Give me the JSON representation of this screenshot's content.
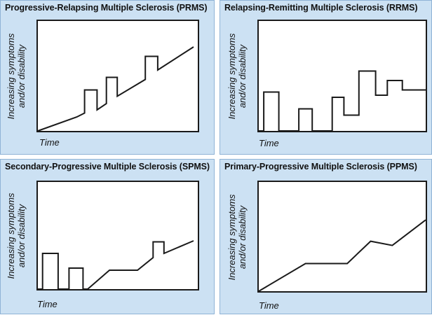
{
  "axis": {
    "ylabel_line1": "Increasing symptoms",
    "ylabel_line2": "and/or disability",
    "xlabel": "Time"
  },
  "panels": [
    {
      "title": "Progressive-Relapsing Multiple Sclerosis (PRMS)",
      "curve": [
        [
          0,
          0
        ],
        [
          0.25,
          0.133
        ],
        [
          0.25,
          0.133
        ],
        [
          0.3,
          0.17
        ],
        [
          0.3,
          0.39
        ],
        [
          0.38,
          0.39
        ],
        [
          0.38,
          0.2
        ],
        [
          0.44,
          0.26
        ],
        [
          0.44,
          0.51
        ],
        [
          0.51,
          0.51
        ],
        [
          0.51,
          0.33
        ],
        [
          0.69,
          0.49
        ],
        [
          0.69,
          0.71
        ],
        [
          0.77,
          0.71
        ],
        [
          0.77,
          0.58
        ],
        [
          1,
          0.8
        ]
      ]
    },
    {
      "title": "Relapsing-Remitting Multiple Sclerosis (RRMS)",
      "curve": [
        [
          0,
          0
        ],
        [
          0.03,
          0
        ],
        [
          0.03,
          0.37
        ],
        [
          0.12,
          0.37
        ],
        [
          0.12,
          0
        ],
        [
          0.24,
          0
        ],
        [
          0.24,
          0.21
        ],
        [
          0.32,
          0.21
        ],
        [
          0.32,
          0
        ],
        [
          0.44,
          0
        ],
        [
          0.44,
          0.32
        ],
        [
          0.51,
          0.32
        ],
        [
          0.51,
          0.15
        ],
        [
          0.6,
          0.15
        ],
        [
          0.6,
          0.57
        ],
        [
          0.7,
          0.57
        ],
        [
          0.7,
          0.34
        ],
        [
          0.77,
          0.34
        ],
        [
          0.77,
          0.48
        ],
        [
          0.86,
          0.48
        ],
        [
          0.86,
          0.39
        ],
        [
          1,
          0.39
        ]
      ]
    },
    {
      "title": "Secondary-Progressive Multiple Sclerosis (SPMS)",
      "curve": [
        [
          0,
          0
        ],
        [
          0.03,
          0
        ],
        [
          0.03,
          0.34
        ],
        [
          0.13,
          0.34
        ],
        [
          0.13,
          0
        ],
        [
          0.2,
          0
        ],
        [
          0.2,
          0.2
        ],
        [
          0.29,
          0.2
        ],
        [
          0.29,
          0
        ],
        [
          0.32,
          0
        ],
        [
          0.46,
          0.18
        ],
        [
          0.64,
          0.18
        ],
        [
          0.74,
          0.3
        ],
        [
          0.74,
          0.45
        ],
        [
          0.81,
          0.45
        ],
        [
          0.81,
          0.34
        ],
        [
          1,
          0.46
        ]
      ]
    },
    {
      "title": "Primary-Progressive Multiple Sclerosis (PPMS)",
      "curve": [
        [
          0,
          0
        ],
        [
          0.28,
          0.26
        ],
        [
          0.53,
          0.26
        ],
        [
          0.67,
          0.47
        ],
        [
          0.8,
          0.43
        ],
        [
          1,
          0.67
        ]
      ]
    }
  ]
}
